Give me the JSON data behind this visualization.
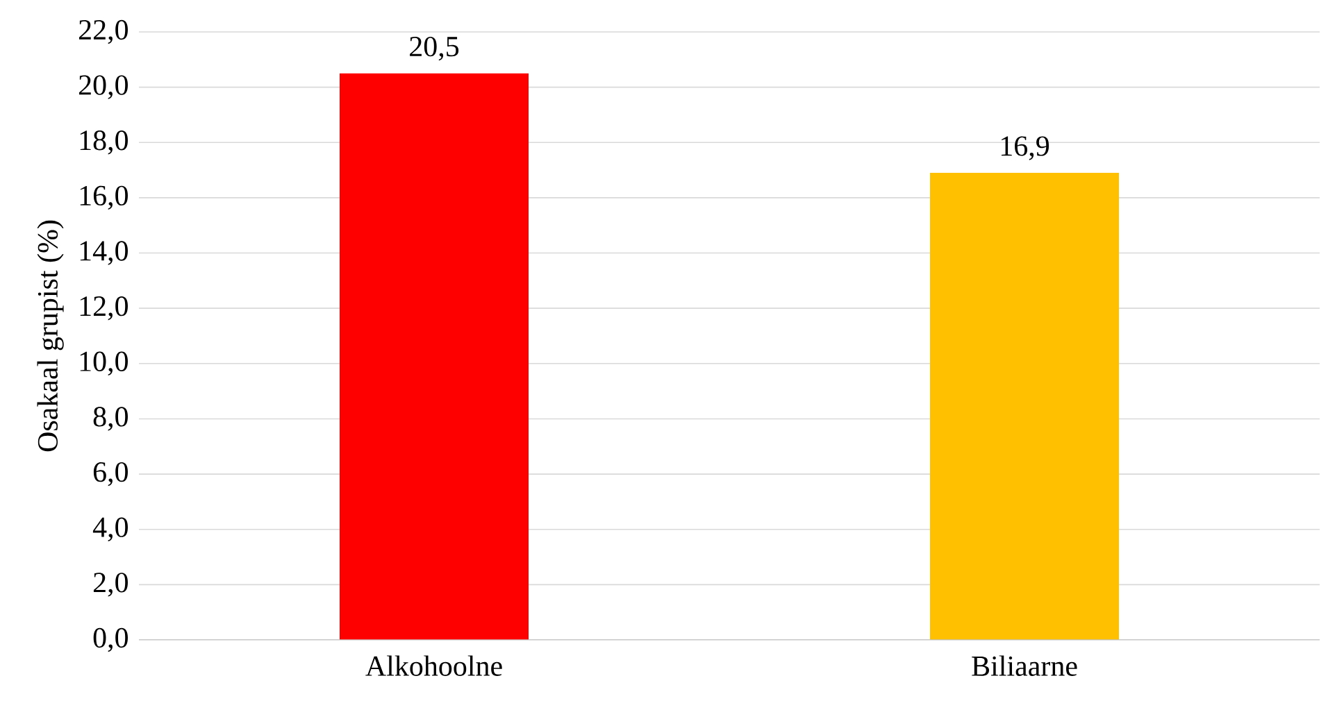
{
  "chart_data": {
    "type": "bar",
    "ylabel": "Osakaal grupist (%)",
    "categories": [
      "Alkohoolne",
      "Biliaarne"
    ],
    "values": [
      20.5,
      16.9
    ],
    "colors": [
      "#ff0000",
      "#ffc000"
    ],
    "value_labels": [
      "20,5",
      "16,9"
    ],
    "ylim": [
      0,
      22
    ],
    "yticks": [
      {
        "value": 0,
        "label": "0,0"
      },
      {
        "value": 2,
        "label": "2,0"
      },
      {
        "value": 4,
        "label": "4,0"
      },
      {
        "value": 6,
        "label": "6,0"
      },
      {
        "value": 8,
        "label": "8,0"
      },
      {
        "value": 10,
        "label": "10,0"
      },
      {
        "value": 12,
        "label": "12,0"
      },
      {
        "value": 14,
        "label": "14,0"
      },
      {
        "value": 16,
        "label": "16,0"
      },
      {
        "value": 18,
        "label": "18,0"
      },
      {
        "value": 20,
        "label": "20,0"
      },
      {
        "value": 22,
        "label": "22,0"
      }
    ],
    "grid": "y"
  }
}
